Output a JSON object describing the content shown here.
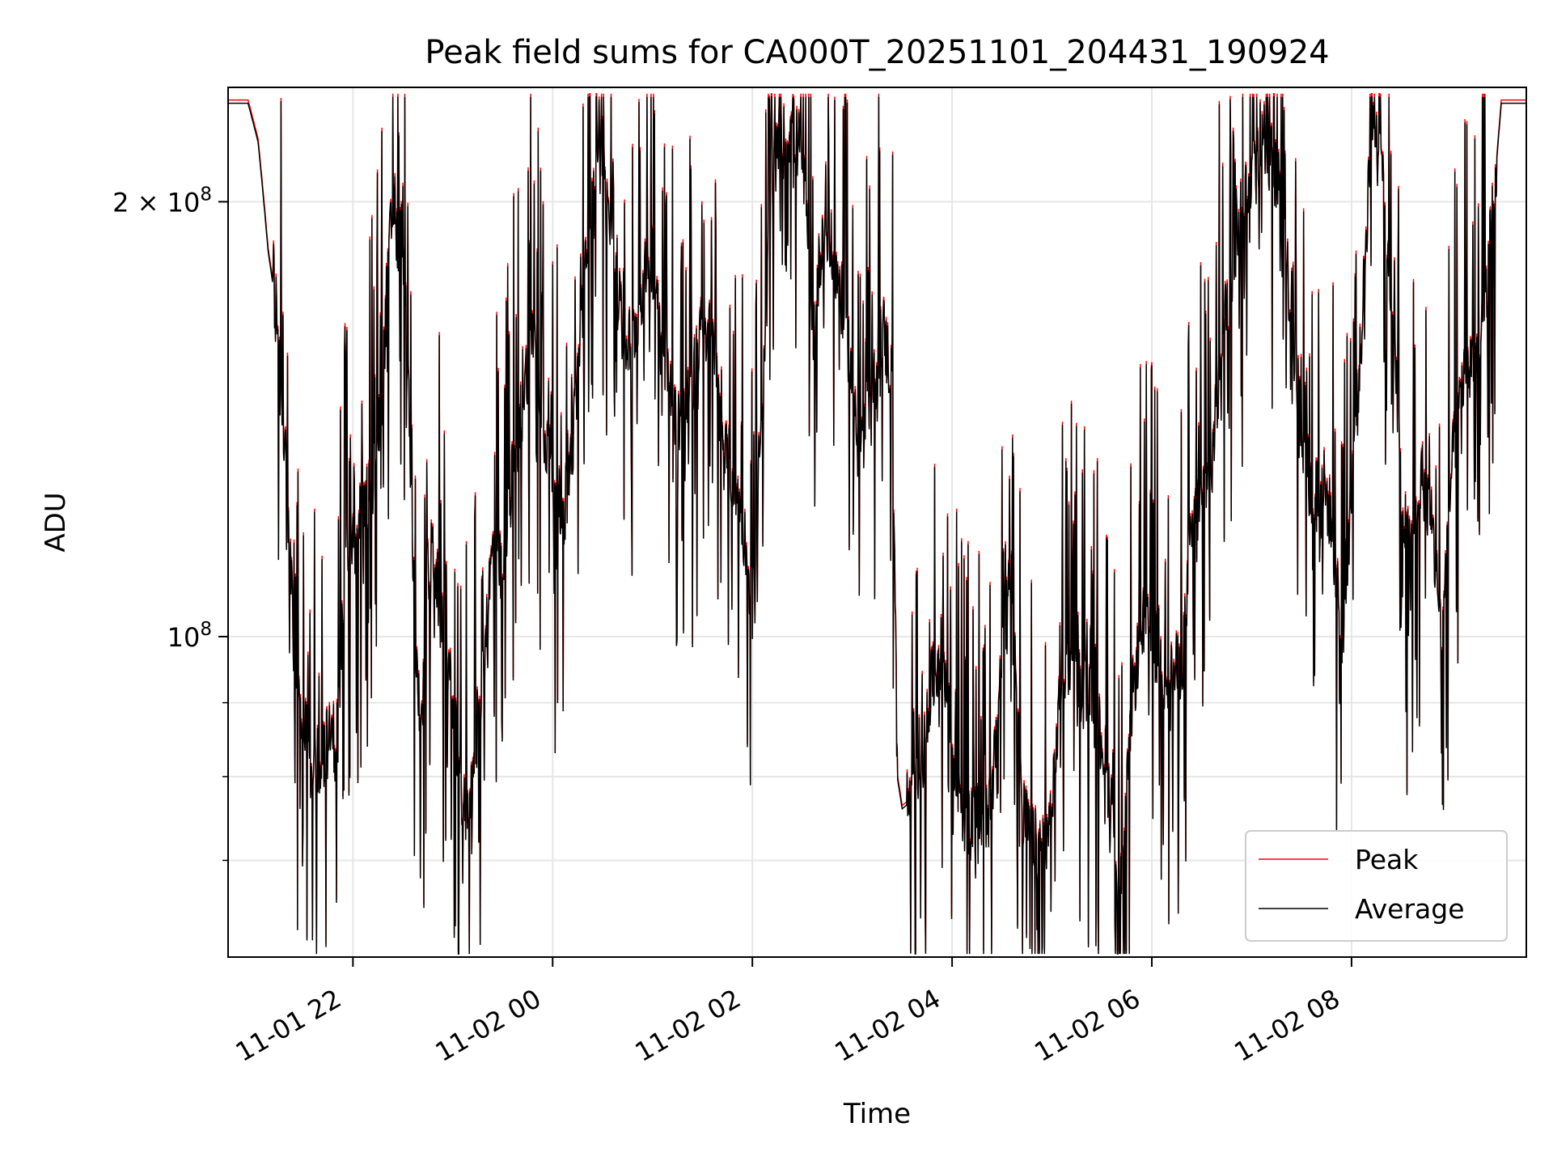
{
  "chart_data": {
    "type": "line",
    "title": "Peak field sums for CA000T_20251101_204431_190924",
    "xlabel": "Time",
    "ylabel": "ADU",
    "yscale": "log",
    "ylim": [
      60000000,
      240000000
    ],
    "xlim_hours": [
      20.75,
      33.75
    ],
    "grid": true,
    "legend_position": "lower-right",
    "x_ticks": [
      {
        "hour": 22,
        "label": "11-01 22"
      },
      {
        "hour": 24,
        "label": "11-02 00"
      },
      {
        "hour": 26,
        "label": "11-02 02"
      },
      {
        "hour": 28,
        "label": "11-02 04"
      },
      {
        "hour": 30,
        "label": "11-02 06"
      },
      {
        "hour": 32,
        "label": "11-02 08"
      }
    ],
    "y_ticks_major": [
      {
        "value": 100000000,
        "mantissa": "",
        "exponent": "8",
        "base": "10"
      },
      {
        "value": 200000000,
        "mantissa": "2 × ",
        "exponent": "8",
        "base": "10"
      }
    ],
    "y_ticks_minor": [
      70000000,
      80000000,
      90000000
    ],
    "series": [
      {
        "name": "Peak",
        "color": "#ff0000"
      },
      {
        "name": "Average",
        "color": "#000000"
      }
    ],
    "envelope_hours": [
      20.75,
      20.95,
      21.05,
      21.15,
      21.25,
      21.35,
      21.45,
      21.55,
      21.6,
      21.7,
      21.85,
      21.9,
      22.0,
      22.1,
      22.15,
      22.2,
      22.3,
      22.35,
      22.4,
      22.45,
      22.5,
      22.55,
      22.6,
      22.65,
      22.7,
      22.75,
      22.8,
      22.9,
      23.0,
      23.05,
      23.1,
      23.2,
      23.3,
      23.4,
      23.5,
      23.6,
      23.7,
      23.8,
      23.9,
      24.0,
      24.1,
      24.2,
      24.3,
      24.4,
      24.5,
      24.6,
      24.7,
      24.8,
      24.9,
      25.0,
      25.1,
      25.2,
      25.3,
      25.4,
      25.5,
      25.6,
      25.7,
      25.8,
      25.9,
      26.0,
      26.1,
      26.2,
      26.3,
      26.4,
      26.5,
      26.6,
      26.7,
      26.8,
      26.9,
      27.0,
      27.1,
      27.2,
      27.3,
      27.4,
      27.45,
      27.5,
      27.6,
      27.7,
      27.8,
      27.9,
      28.0,
      28.1,
      28.2,
      28.3,
      28.4,
      28.5,
      28.6,
      28.7,
      28.8,
      28.9,
      29.0,
      29.1,
      29.2,
      29.3,
      29.4,
      29.5,
      29.6,
      29.7,
      29.8,
      29.9,
      30.0,
      30.1,
      30.2,
      30.3,
      30.4,
      30.5,
      30.6,
      30.7,
      30.8,
      30.9,
      31.0,
      31.1,
      31.2,
      31.3,
      31.4,
      31.5,
      31.6,
      31.7,
      31.8,
      31.9,
      32.0,
      32.1,
      32.2,
      32.3,
      32.4,
      32.5,
      32.6,
      32.7,
      32.8,
      32.9,
      33.0,
      33.1,
      33.2,
      33.3,
      33.4,
      33.5,
      33.75
    ],
    "envelope_baseline": [
      234000000,
      234000000,
      220000000,
      185000000,
      165000000,
      120000000,
      90000000,
      84000000,
      80000000,
      84000000,
      86000000,
      105000000,
      120000000,
      122000000,
      126000000,
      128000000,
      150000000,
      180000000,
      200000000,
      185000000,
      195000000,
      150000000,
      110000000,
      90000000,
      92000000,
      110000000,
      115000000,
      100000000,
      90000000,
      82000000,
      75000000,
      80000000,
      95000000,
      115000000,
      110000000,
      130000000,
      145000000,
      165000000,
      140000000,
      130000000,
      120000000,
      135000000,
      170000000,
      200000000,
      220000000,
      190000000,
      160000000,
      160000000,
      175000000,
      185000000,
      160000000,
      145000000,
      140000000,
      150000000,
      165000000,
      160000000,
      135000000,
      130000000,
      120000000,
      105000000,
      140000000,
      210000000,
      220000000,
      225000000,
      215000000,
      160000000,
      190000000,
      185000000,
      170000000,
      150000000,
      135000000,
      145000000,
      165000000,
      150000000,
      80000000,
      76000000,
      77000000,
      82000000,
      93000000,
      98000000,
      84000000,
      76000000,
      74000000,
      75000000,
      76000000,
      98000000,
      113000000,
      76000000,
      72000000,
      72000000,
      75000000,
      95000000,
      97000000,
      92000000,
      90000000,
      85000000,
      76000000,
      65000000,
      90000000,
      102000000,
      100000000,
      96000000,
      94000000,
      96000000,
      118000000,
      126000000,
      130000000,
      160000000,
      180000000,
      200000000,
      210000000,
      220000000,
      215000000,
      200000000,
      165000000,
      140000000,
      125000000,
      130000000,
      120000000,
      100000000,
      125000000,
      160000000,
      225000000,
      220000000,
      170000000,
      125000000,
      115000000,
      130000000,
      120000000,
      100000000,
      130000000,
      150000000,
      155000000,
      160000000,
      190000000,
      234000000,
      234000000
    ]
  }
}
